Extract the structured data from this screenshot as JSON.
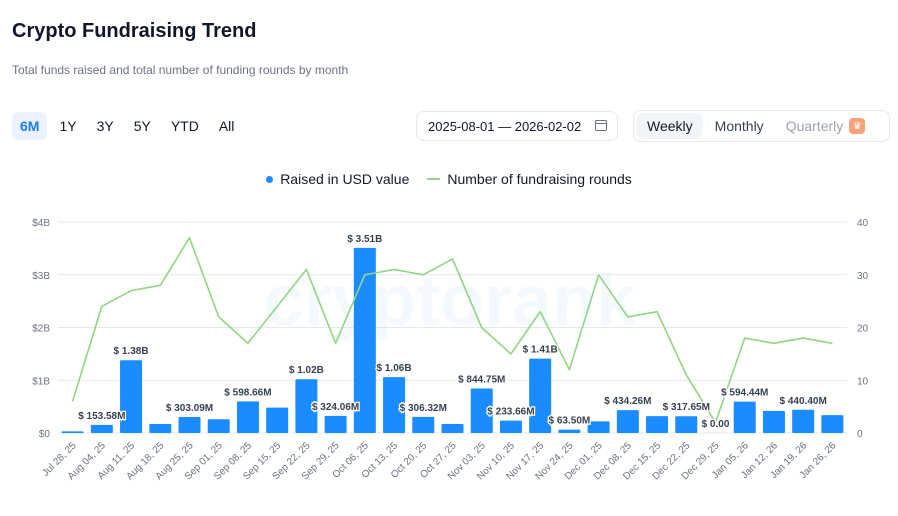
{
  "header": {
    "title": "Crypto Fundraising Trend",
    "subtitle": "Total funds raised and total number of funding rounds by month"
  },
  "range_tabs": [
    "6M",
    "1Y",
    "3Y",
    "5Y",
    "YTD",
    "All"
  ],
  "active_range": "6M",
  "date_range": "2025-08-01 — 2026-02-02",
  "period_tabs": {
    "weekly": "Weekly",
    "monthly": "Monthly",
    "quarterly": "Quarterly"
  },
  "active_period": "Weekly",
  "watermark": "cryptorank",
  "colors": {
    "bars": "#1a8cff",
    "line": "#8fd67e",
    "grid": "#e5e7eb"
  },
  "chart_data": {
    "type": "bar",
    "categories": [
      "Jul 28, 25",
      "Aug 04, 25",
      "Aug 11, 25",
      "Aug 18, 25",
      "Aug 25, 25",
      "Sep 01, 25",
      "Sep 08, 25",
      "Sep 15, 25",
      "Sep 22, 25",
      "Sep 29, 25",
      "Oct 06, 25",
      "Oct 13, 25",
      "Oct 20, 25",
      "Oct 27, 25",
      "Nov 03, 25",
      "Nov 10, 25",
      "Nov 17, 25",
      "Nov 24, 25",
      "Dec 01, 25",
      "Dec 08, 25",
      "Dec 15, 25",
      "Dec 22, 25",
      "Dec 29, 25",
      "Jan 05, 26",
      "Jan 12, 26",
      "Jan 19, 26",
      "Jan 26, 26"
    ],
    "series": [
      {
        "name": "Raised in USD value",
        "type": "bar",
        "axis": "left",
        "values": [
          0.03,
          0.15358,
          1.38,
          0.17,
          0.30309,
          0.26,
          0.59866,
          0.48,
          1.02,
          0.32406,
          3.51,
          1.06,
          0.30632,
          0.17,
          0.84475,
          0.23366,
          1.41,
          0.0635,
          0.22,
          0.43426,
          0.32,
          0.31765,
          0.0,
          0.59444,
          0.42,
          0.4404,
          0.34
        ],
        "labels": [
          "",
          "$ 153.58M",
          "$ 1.38B",
          "",
          "$ 303.09M",
          "",
          "$ 598.66M",
          "",
          "$ 1.02B",
          "$ 324.06M",
          "$ 3.51B",
          "$ 1.06B",
          "$ 306.32M",
          "",
          "$ 844.75M",
          "$ 233.66M",
          "$ 1.41B",
          "$ 63.50M",
          "",
          "$ 434.26M",
          "",
          "$ 317.65M",
          "$ 0.00",
          "$ 594.44M",
          "",
          "$ 440.40M",
          ""
        ]
      },
      {
        "name": "Number of fundraising rounds",
        "type": "line",
        "axis": "right",
        "values": [
          6,
          24,
          27,
          28,
          37,
          22,
          17,
          24,
          31,
          17,
          30,
          31,
          30,
          33,
          20,
          15,
          23,
          12,
          30,
          22,
          23,
          11,
          2,
          18,
          17,
          18,
          17
        ]
      }
    ],
    "y_left": {
      "ticks": [
        "$0",
        "$1B",
        "$2B",
        "$3B",
        "$4B"
      ],
      "range": [
        0,
        4
      ]
    },
    "y_right": {
      "ticks": [
        "0",
        "10",
        "20",
        "30",
        "40"
      ],
      "range": [
        0,
        40
      ]
    },
    "grid": true,
    "legend_position": "top-center"
  }
}
